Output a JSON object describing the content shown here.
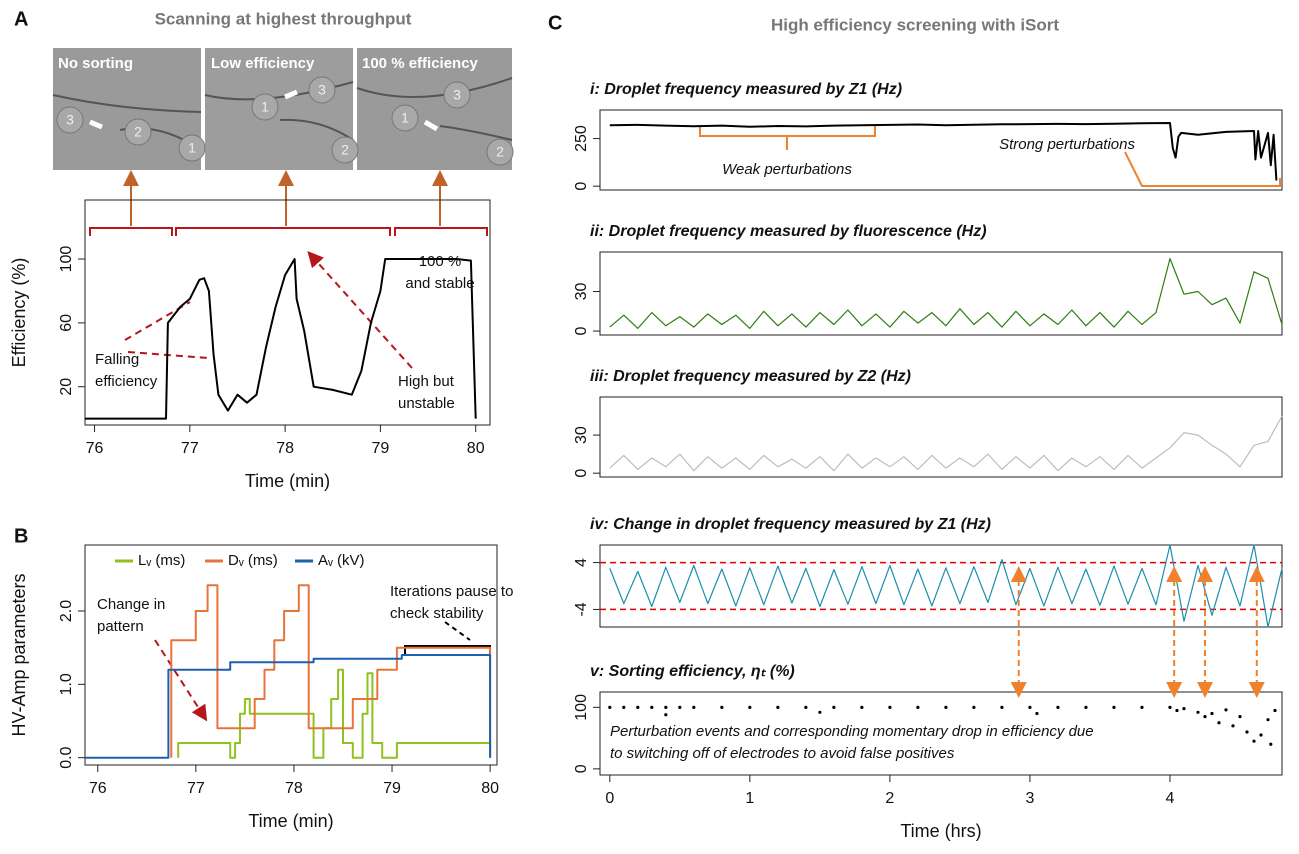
{
  "panels": [
    {
      "label": "A",
      "title": "Scanning at highest throughput"
    },
    {
      "label": "B"
    },
    {
      "label": "C",
      "title": "High efficiency screening with iSort"
    }
  ],
  "images": [
    {
      "caption": "No sorting",
      "droplets": [
        "3",
        "2",
        "1"
      ]
    },
    {
      "caption": "Low  efficiency",
      "droplets": [
        "1",
        "3",
        "2"
      ]
    },
    {
      "caption": "100 % efficiency",
      "droplets": [
        "1",
        "3",
        "2"
      ]
    }
  ],
  "chart_data": [
    {
      "type": "line",
      "xlabel": "Time (min)",
      "ylabel": "Efficiency (%)",
      "color": "#000000",
      "x": [
        75.9,
        76.75,
        76.77,
        76.9,
        77.0,
        77.1,
        77.15,
        77.2,
        77.25,
        77.3,
        77.4,
        77.5,
        77.6,
        77.7,
        77.8,
        77.9,
        78.0,
        78.1,
        78.12,
        78.2,
        78.3,
        78.5,
        78.7,
        78.8,
        78.9,
        79.0,
        79.05,
        79.5,
        79.8,
        79.95,
        80.0
      ],
      "values": [
        0,
        0,
        60,
        70,
        75,
        87,
        88,
        80,
        40,
        15,
        5,
        15,
        10,
        15,
        45,
        70,
        90,
        100,
        75,
        55,
        20,
        18,
        15,
        30,
        60,
        80,
        100,
        100,
        100,
        99,
        0
      ],
      "xlim": [
        75.9,
        80.15
      ],
      "ylim": [
        -4,
        137
      ],
      "xticks": [
        76,
        77,
        78,
        79,
        80
      ],
      "yticks": [
        20,
        60,
        100
      ],
      "annotations": [
        {
          "text": [
            "Falling",
            "efficiency"
          ]
        },
        {
          "text": [
            "High but",
            "unstable"
          ]
        },
        {
          "text": [
            "100 %",
            "and stable"
          ]
        }
      ]
    },
    {
      "type": "line",
      "xlabel": "Time (min)",
      "ylabel": "HV-Amp parameters",
      "legend": "top",
      "series": [
        {
          "name": "Lᵥ (ms)",
          "color": "#8dc21f",
          "x": [
            76.82,
            76.82,
            77.35,
            77.35,
            77.4,
            77.4,
            77.45,
            77.45,
            77.5,
            77.5,
            77.55,
            77.55,
            78.2,
            78.2,
            78.3,
            78.3,
            78.38,
            78.38,
            78.45,
            78.45,
            78.5,
            78.5,
            78.6,
            78.6,
            78.7,
            78.7,
            78.75,
            78.75,
            78.8,
            78.8,
            78.9,
            78.9,
            79.05,
            79.05,
            80.0,
            80.0
          ],
          "values": [
            0,
            0.2,
            0.2,
            0,
            0,
            0.2,
            0.2,
            0.6,
            0.6,
            0.8,
            0.8,
            0.6,
            0.6,
            0,
            0,
            0.4,
            0.4,
            0.8,
            0.8,
            1.2,
            1.2,
            0.2,
            0.2,
            0,
            0,
            0.6,
            0.6,
            1.15,
            1.15,
            0.2,
            0.2,
            0,
            0,
            0.2,
            0.2,
            0
          ]
        },
        {
          "name": "Dᵥ (ms)",
          "color": "#e8743b",
          "x": [
            76.75,
            76.75,
            77.0,
            77.0,
            77.12,
            77.12,
            77.22,
            77.22,
            77.6,
            77.6,
            77.7,
            77.7,
            77.8,
            77.8,
            77.9,
            77.9,
            78.05,
            78.05,
            78.15,
            78.15,
            78.6,
            78.6,
            78.85,
            78.85,
            79.05,
            79.05,
            80.0,
            80.0
          ],
          "values": [
            0,
            1.6,
            1.6,
            2.0,
            2.0,
            2.35,
            2.35,
            0.4,
            0.4,
            0.8,
            0.8,
            1.2,
            1.2,
            1.6,
            1.6,
            2.0,
            2.0,
            2.35,
            2.35,
            0.4,
            0.4,
            0.8,
            0.8,
            1.2,
            1.2,
            1.5,
            1.5,
            0
          ]
        },
        {
          "name": "Aᵥ (kV)",
          "color": "#1f5fae",
          "x": [
            75.87,
            76.72,
            76.72,
            77.35,
            77.35,
            78.2,
            78.2,
            79.1,
            79.1,
            80.0,
            80.0
          ],
          "values": [
            0,
            0,
            1.2,
            1.2,
            1.3,
            1.3,
            1.35,
            1.35,
            1.4,
            1.4,
            0
          ]
        }
      ],
      "xlim": [
        75.87,
        80.07
      ],
      "ylim": [
        -0.1,
        2.9
      ],
      "xticks": [
        76,
        77,
        78,
        79,
        80
      ],
      "yticks": [
        {
          "value": 0,
          "label": "0.0"
        },
        {
          "value": 1,
          "label": "1.0"
        },
        {
          "value": 2,
          "label": "2.0"
        }
      ],
      "annotations": [
        {
          "text": [
            "Change in",
            "pattern"
          ]
        },
        {
          "text": [
            "Iterations pause to",
            "check stability"
          ]
        }
      ]
    },
    {
      "type": "line",
      "title": "i: Droplet frequency measured by Z1 (Hz)",
      "color": "#000000",
      "x": [
        0,
        0.2,
        0.4,
        0.6,
        0.8,
        1.0,
        1.2,
        1.4,
        1.6,
        1.8,
        2.0,
        2.2,
        2.4,
        2.6,
        2.8,
        3.0,
        3.2,
        3.4,
        3.6,
        3.8,
        4.0,
        4.02,
        4.04,
        4.06,
        4.08,
        4.2,
        4.4,
        4.6,
        4.61,
        4.63,
        4.65,
        4.7,
        4.72,
        4.74,
        4.76
      ],
      "values": [
        320,
        322,
        318,
        315,
        318,
        312,
        316,
        314,
        318,
        320,
        322,
        324,
        320,
        323,
        325,
        326,
        327,
        326,
        328,
        330,
        332,
        200,
        150,
        260,
        280,
        270,
        285,
        290,
        140,
        290,
        150,
        280,
        110,
        270,
        30
      ],
      "xlim": [
        -0.07,
        4.8
      ],
      "ylim": [
        -20,
        400
      ],
      "yticks": [
        0,
        250
      ],
      "annotations": [
        {
          "text": [
            "Weak perturbations"
          ]
        },
        {
          "text": [
            "Strong perturbations"
          ]
        }
      ]
    },
    {
      "type": "line",
      "title": "ii: Droplet frequency measured by fluorescence (Hz)",
      "color": "#2e7d12",
      "x": [
        0,
        0.1,
        0.2,
        0.3,
        0.4,
        0.5,
        0.6,
        0.7,
        0.8,
        0.9,
        1.0,
        1.1,
        1.2,
        1.3,
        1.4,
        1.5,
        1.6,
        1.7,
        1.8,
        1.9,
        2.0,
        2.1,
        2.2,
        2.3,
        2.4,
        2.5,
        2.6,
        2.7,
        2.8,
        2.9,
        3.0,
        3.1,
        3.2,
        3.3,
        3.4,
        3.5,
        3.6,
        3.7,
        3.8,
        3.9,
        4.0,
        4.1,
        4.2,
        4.3,
        4.4,
        4.5,
        4.6,
        4.7,
        4.8
      ],
      "values": [
        3,
        12,
        2,
        14,
        4,
        11,
        3,
        13,
        5,
        12,
        2,
        15,
        4,
        13,
        3,
        14,
        5,
        16,
        4,
        13,
        3,
        15,
        6,
        14,
        4,
        17,
        5,
        14,
        3,
        15,
        4,
        13,
        5,
        16,
        4,
        14,
        3,
        15,
        5,
        14,
        55,
        28,
        30,
        20,
        25,
        6,
        45,
        40,
        5
      ],
      "xlim": [
        -0.07,
        4.8
      ],
      "ylim": [
        -3,
        60
      ],
      "yticks": [
        0,
        30
      ]
    },
    {
      "type": "line",
      "title": "iii: Droplet frequency measured by Z2 (Hz)",
      "color": "#bdbdbd",
      "x": [
        0,
        0.1,
        0.2,
        0.3,
        0.4,
        0.5,
        0.6,
        0.7,
        0.8,
        0.9,
        1.0,
        1.1,
        1.2,
        1.3,
        1.4,
        1.5,
        1.6,
        1.7,
        1.8,
        1.9,
        2.0,
        2.1,
        2.2,
        2.3,
        2.4,
        2.5,
        2.6,
        2.7,
        2.8,
        2.9,
        3.0,
        3.1,
        3.2,
        3.3,
        3.4,
        3.5,
        3.6,
        3.7,
        3.8,
        3.9,
        4.0,
        4.1,
        4.2,
        4.3,
        4.4,
        4.5,
        4.6,
        4.7,
        4.8
      ],
      "values": [
        4,
        14,
        3,
        12,
        5,
        15,
        2,
        13,
        4,
        12,
        3,
        14,
        5,
        11,
        4,
        13,
        2,
        15,
        4,
        12,
        5,
        13,
        3,
        14,
        4,
        12,
        5,
        15,
        3,
        13,
        4,
        14,
        2,
        12,
        5,
        13,
        3,
        14,
        4,
        12,
        20,
        32,
        30,
        22,
        15,
        5,
        22,
        25,
        45
      ],
      "xlim": [
        -0.07,
        4.8
      ],
      "ylim": [
        -3,
        60
      ],
      "yticks": [
        0,
        30
      ]
    },
    {
      "type": "line",
      "title": "iv: Change in droplet frequency measured by Z1 (Hz)",
      "color": "#1a8fae",
      "x": [
        0,
        0.1,
        0.2,
        0.3,
        0.4,
        0.5,
        0.6,
        0.7,
        0.8,
        0.9,
        1.0,
        1.1,
        1.2,
        1.3,
        1.4,
        1.5,
        1.6,
        1.7,
        1.8,
        1.9,
        2.0,
        2.1,
        2.2,
        2.3,
        2.4,
        2.5,
        2.6,
        2.7,
        2.8,
        2.9,
        3.0,
        3.1,
        3.2,
        3.3,
        3.4,
        3.5,
        3.6,
        3.7,
        3.8,
        3.9,
        4.0,
        4.1,
        4.2,
        4.3,
        4.4,
        4.5,
        4.6,
        4.7,
        4.8
      ],
      "values": [
        3,
        -3,
        2.5,
        -3.5,
        3.2,
        -2.8,
        3.5,
        -3,
        2.9,
        -3.4,
        3.1,
        -3.2,
        3.4,
        -2.9,
        3,
        -3.5,
        2.8,
        -3.1,
        3.3,
        -3,
        3.5,
        -3.2,
        2.9,
        -3.4,
        3.1,
        -3,
        3.3,
        -2.8,
        4.5,
        -3.2,
        3,
        -3.4,
        3.2,
        -3,
        2.9,
        -3.3,
        3.4,
        -3.1,
        3,
        -3.2,
        7,
        -6,
        3.5,
        -5,
        3.2,
        -3.4,
        7,
        -7,
        3
      ],
      "xlim": [
        -0.07,
        4.8
      ],
      "ylim": [
        -7,
        7
      ],
      "yticks": [
        -4,
        4
      ],
      "thresholds": [
        -4,
        4
      ],
      "threshold_color": "#e00000"
    },
    {
      "type": "scatter",
      "title": "v: Sorting efficiency, ηₜ (%)",
      "color": "#000000",
      "xlabel": "Time (hrs)",
      "x": [
        0,
        0.1,
        0.2,
        0.3,
        0.4,
        0.5,
        0.6,
        0.8,
        1.0,
        1.2,
        1.4,
        1.6,
        1.8,
        2.0,
        2.2,
        2.4,
        2.6,
        2.8,
        3.0,
        3.2,
        3.4,
        3.6,
        3.8,
        4.0,
        4.05,
        4.1,
        4.2,
        4.3,
        4.4,
        4.5,
        4.55,
        4.6,
        4.65,
        4.7,
        4.75,
        0.4,
        1.5,
        3.05,
        4.25,
        4.35,
        4.45,
        4.72
      ],
      "values": [
        100,
        100,
        100,
        100,
        100,
        100,
        100,
        100,
        100,
        100,
        100,
        100,
        100,
        100,
        100,
        100,
        100,
        100,
        100,
        100,
        100,
        100,
        100,
        100,
        95,
        98,
        92,
        90,
        96,
        85,
        60,
        45,
        55,
        80,
        95,
        88,
        92,
        90,
        85,
        75,
        70,
        40
      ],
      "xlim": [
        -0.07,
        4.8
      ],
      "ylim": [
        -10,
        125
      ],
      "xticks": [
        0,
        1,
        2,
        3,
        4
      ],
      "yticks": [
        0,
        100
      ],
      "events": [
        2.92,
        4.03,
        4.25,
        4.62
      ],
      "event_color": "#f0822e",
      "annotations": [
        {
          "text": [
            "Perturbation events and corresponding momentary drop in efficiency due",
            "to switching off of electrodes to avoid false positives"
          ]
        }
      ]
    }
  ]
}
